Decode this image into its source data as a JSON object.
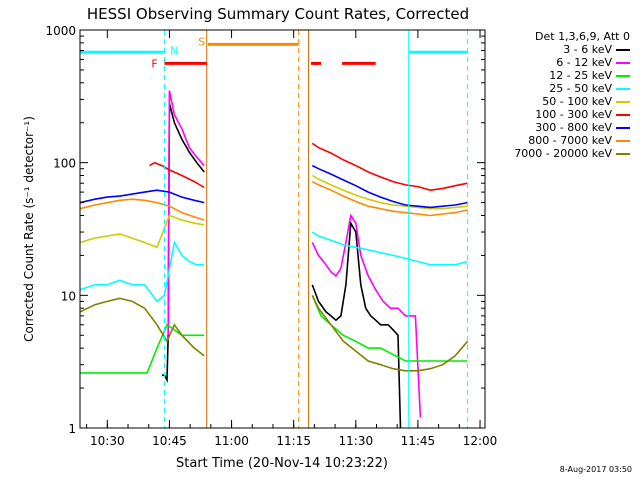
{
  "chart_data": {
    "type": "line",
    "title": "HESSI Observing Summary Count Rates, Corrected",
    "xlabel": "Start Time (20-Nov-14 10:23:22)",
    "ylabel": "Corrected Count Rate (s⁻¹ detector⁻¹)",
    "y_scale": "log",
    "ylim": [
      1,
      1000
    ],
    "xlim": [
      10.39,
      12.02
    ],
    "x_ticks": [
      {
        "v": 10.5,
        "label": "10:30"
      },
      {
        "v": 10.75,
        "label": "10:45"
      },
      {
        "v": 11.0,
        "label": "11:00"
      },
      {
        "v": 11.25,
        "label": "11:15"
      },
      {
        "v": 11.5,
        "label": "11:30"
      },
      {
        "v": 11.75,
        "label": "11:45"
      },
      {
        "v": 12.0,
        "label": "12:00"
      }
    ],
    "y_ticks": [
      {
        "v": 1,
        "label": "1"
      },
      {
        "v": 10,
        "label": "10"
      },
      {
        "v": 100,
        "label": "100"
      },
      {
        "v": 1000,
        "label": "1000"
      }
    ],
    "series": [
      {
        "name": "3 - 6 keV",
        "color": "#000000",
        "points": [
          [
            10.72,
            2.5
          ],
          [
            10.73,
            2.5
          ],
          [
            10.74,
            2.3
          ],
          [
            10.745,
            5
          ],
          [
            10.75,
            280
          ],
          [
            10.77,
            200
          ],
          [
            10.8,
            150
          ],
          [
            10.83,
            120
          ],
          [
            10.86,
            100
          ],
          [
            10.89,
            85
          ],
          [
            11.325,
            12
          ],
          [
            11.35,
            9
          ],
          [
            11.38,
            7.5
          ],
          [
            11.4,
            7
          ],
          [
            11.42,
            6.5
          ],
          [
            11.44,
            7
          ],
          [
            11.46,
            12
          ],
          [
            11.48,
            35
          ],
          [
            11.5,
            30
          ],
          [
            11.52,
            12
          ],
          [
            11.54,
            8
          ],
          [
            11.56,
            7
          ],
          [
            11.58,
            6.5
          ],
          [
            11.6,
            6
          ],
          [
            11.63,
            6
          ],
          [
            11.65,
            5.5
          ],
          [
            11.67,
            5
          ],
          [
            11.68,
            1
          ]
        ]
      },
      {
        "name": "6 - 12 keV",
        "color": "#ff00ff",
        "points": [
          [
            10.745,
            5
          ],
          [
            10.75,
            350
          ],
          [
            10.77,
            230
          ],
          [
            10.8,
            180
          ],
          [
            10.83,
            130
          ],
          [
            10.86,
            110
          ],
          [
            10.89,
            95
          ],
          [
            11.325,
            25
          ],
          [
            11.35,
            20
          ],
          [
            11.38,
            17
          ],
          [
            11.4,
            15
          ],
          [
            11.42,
            14
          ],
          [
            11.44,
            16
          ],
          [
            11.46,
            25
          ],
          [
            11.48,
            40
          ],
          [
            11.5,
            35
          ],
          [
            11.52,
            20
          ],
          [
            11.55,
            14
          ],
          [
            11.58,
            11
          ],
          [
            11.61,
            9
          ],
          [
            11.64,
            8
          ],
          [
            11.67,
            8
          ],
          [
            11.7,
            7
          ],
          [
            11.74,
            7
          ],
          [
            11.76,
            1.2
          ]
        ]
      },
      {
        "name": "12 - 25 keV",
        "color": "#00ee00",
        "points": [
          [
            10.39,
            2.6
          ],
          [
            10.45,
            2.6
          ],
          [
            10.5,
            2.6
          ],
          [
            10.55,
            2.6
          ],
          [
            10.6,
            2.6
          ],
          [
            10.66,
            2.6
          ],
          [
            10.7,
            4
          ],
          [
            10.74,
            6
          ],
          [
            10.77,
            5.5
          ],
          [
            10.8,
            5
          ],
          [
            10.85,
            5
          ],
          [
            10.89,
            5
          ],
          [
            11.325,
            10
          ],
          [
            11.36,
            7
          ],
          [
            11.4,
            6
          ],
          [
            11.45,
            5
          ],
          [
            11.5,
            4.5
          ],
          [
            11.55,
            4
          ],
          [
            11.6,
            4
          ],
          [
            11.66,
            3.5
          ],
          [
            11.7,
            3.2
          ],
          [
            11.75,
            3.2
          ],
          [
            11.8,
            3.2
          ],
          [
            11.85,
            3.2
          ],
          [
            11.9,
            3.2
          ],
          [
            11.95,
            3.2
          ]
        ]
      },
      {
        "name": "25 - 50 keV",
        "color": "#00ffff",
        "points": [
          [
            10.39,
            11
          ],
          [
            10.45,
            12
          ],
          [
            10.5,
            12
          ],
          [
            10.55,
            13
          ],
          [
            10.6,
            12
          ],
          [
            10.65,
            12
          ],
          [
            10.7,
            9
          ],
          [
            10.73,
            10
          ],
          [
            10.77,
            25
          ],
          [
            10.8,
            20
          ],
          [
            10.83,
            18
          ],
          [
            10.86,
            17
          ],
          [
            10.89,
            17
          ],
          [
            11.325,
            30
          ],
          [
            11.35,
            28
          ],
          [
            11.4,
            26
          ],
          [
            11.45,
            24
          ],
          [
            11.5,
            23
          ],
          [
            11.55,
            22
          ],
          [
            11.6,
            21
          ],
          [
            11.65,
            20
          ],
          [
            11.7,
            19
          ],
          [
            11.75,
            18
          ],
          [
            11.8,
            17
          ],
          [
            11.85,
            17
          ],
          [
            11.9,
            17
          ],
          [
            11.95,
            18
          ]
        ]
      },
      {
        "name": "50 - 100 keV",
        "color": "#cccc00",
        "points": [
          [
            10.39,
            25
          ],
          [
            10.45,
            27
          ],
          [
            10.5,
            28
          ],
          [
            10.55,
            29
          ],
          [
            10.6,
            27
          ],
          [
            10.65,
            25
          ],
          [
            10.7,
            23
          ],
          [
            10.75,
            40
          ],
          [
            10.8,
            37
          ],
          [
            10.85,
            35
          ],
          [
            10.89,
            34
          ],
          [
            11.325,
            80
          ],
          [
            11.35,
            75
          ],
          [
            11.4,
            68
          ],
          [
            11.45,
            62
          ],
          [
            11.5,
            57
          ],
          [
            11.55,
            53
          ],
          [
            11.6,
            50
          ],
          [
            11.65,
            48
          ],
          [
            11.7,
            47
          ],
          [
            11.75,
            46
          ],
          [
            11.8,
            45
          ],
          [
            11.85,
            45
          ],
          [
            11.9,
            46
          ],
          [
            11.95,
            47
          ]
        ]
      },
      {
        "name": "100 - 300 keV",
        "color": "#ff0000",
        "points": [
          [
            10.67,
            95
          ],
          [
            10.69,
            100
          ],
          [
            10.72,
            95
          ],
          [
            10.75,
            88
          ],
          [
            10.8,
            80
          ],
          [
            10.85,
            72
          ],
          [
            10.89,
            65
          ],
          [
            11.325,
            140
          ],
          [
            11.35,
            130
          ],
          [
            11.4,
            118
          ],
          [
            11.45,
            105
          ],
          [
            11.5,
            95
          ],
          [
            11.55,
            85
          ],
          [
            11.6,
            78
          ],
          [
            11.65,
            72
          ],
          [
            11.7,
            68
          ],
          [
            11.75,
            66
          ],
          [
            11.8,
            62
          ],
          [
            11.85,
            64
          ],
          [
            11.9,
            67
          ],
          [
            11.95,
            70
          ]
        ]
      },
      {
        "name": "300 - 800 keV",
        "color": "#0000ff",
        "points": [
          [
            10.39,
            50
          ],
          [
            10.45,
            53
          ],
          [
            10.5,
            55
          ],
          [
            10.55,
            56
          ],
          [
            10.6,
            58
          ],
          [
            10.65,
            60
          ],
          [
            10.7,
            62
          ],
          [
            10.75,
            60
          ],
          [
            10.8,
            55
          ],
          [
            10.85,
            52
          ],
          [
            10.89,
            50
          ],
          [
            11.325,
            95
          ],
          [
            11.35,
            90
          ],
          [
            11.4,
            82
          ],
          [
            11.45,
            74
          ],
          [
            11.5,
            67
          ],
          [
            11.55,
            60
          ],
          [
            11.6,
            55
          ],
          [
            11.65,
            51
          ],
          [
            11.7,
            48
          ],
          [
            11.75,
            47
          ],
          [
            11.8,
            46
          ],
          [
            11.85,
            47
          ],
          [
            11.9,
            48
          ],
          [
            11.95,
            50
          ]
        ]
      },
      {
        "name": "800 - 7000 keV",
        "color": "#ff8800",
        "points": [
          [
            10.39,
            45
          ],
          [
            10.45,
            48
          ],
          [
            10.5,
            50
          ],
          [
            10.55,
            52
          ],
          [
            10.6,
            53
          ],
          [
            10.65,
            52
          ],
          [
            10.7,
            50
          ],
          [
            10.75,
            47
          ],
          [
            10.8,
            42
          ],
          [
            10.85,
            39
          ],
          [
            10.89,
            37
          ],
          [
            11.325,
            72
          ],
          [
            11.35,
            68
          ],
          [
            11.4,
            62
          ],
          [
            11.45,
            56
          ],
          [
            11.5,
            51
          ],
          [
            11.55,
            47
          ],
          [
            11.6,
            45
          ],
          [
            11.65,
            43
          ],
          [
            11.7,
            42
          ],
          [
            11.75,
            41
          ],
          [
            11.8,
            40
          ],
          [
            11.85,
            41
          ],
          [
            11.9,
            42
          ],
          [
            11.95,
            44
          ]
        ]
      },
      {
        "name": "7000 - 20000 keV",
        "color": "#808000",
        "points": [
          [
            10.39,
            7.5
          ],
          [
            10.45,
            8.5
          ],
          [
            10.5,
            9
          ],
          [
            10.55,
            9.5
          ],
          [
            10.6,
            9
          ],
          [
            10.65,
            8
          ],
          [
            10.7,
            6
          ],
          [
            10.74,
            4.5
          ],
          [
            10.77,
            6
          ],
          [
            10.8,
            5
          ],
          [
            10.85,
            4
          ],
          [
            10.89,
            3.5
          ],
          [
            11.325,
            10
          ],
          [
            11.35,
            8
          ],
          [
            11.4,
            6
          ],
          [
            11.45,
            4.5
          ],
          [
            11.5,
            3.8
          ],
          [
            11.55,
            3.2
          ],
          [
            11.6,
            3
          ],
          [
            11.65,
            2.8
          ],
          [
            11.7,
            2.7
          ],
          [
            11.75,
            2.7
          ],
          [
            11.8,
            2.8
          ],
          [
            11.85,
            3
          ],
          [
            11.9,
            3.5
          ],
          [
            11.95,
            4.5
          ]
        ]
      }
    ],
    "vlines": [
      {
        "x": 10.39,
        "color": "#00ffff",
        "dash": false
      },
      {
        "x": 10.73,
        "color": "#00ffff",
        "dash": true
      },
      {
        "x": 10.9,
        "color": "#cc6600",
        "dash": false
      },
      {
        "x": 11.27,
        "color": "#ff8800",
        "dash": true
      },
      {
        "x": 11.31,
        "color": "#cc6600",
        "dash": false
      },
      {
        "x": 11.713,
        "color": "#00ffff",
        "dash": false
      },
      {
        "x": 11.95,
        "color": "#00ffff",
        "dash": true
      }
    ],
    "bars": [
      {
        "x0": 10.39,
        "x1": 10.73,
        "y": 680,
        "color": "#00ffff"
      },
      {
        "x0": 10.73,
        "x1": 10.9,
        "y": 560,
        "color": "#ff0000"
      },
      {
        "x0": 10.905,
        "x1": 11.27,
        "y": 780,
        "color": "#ff8800"
      },
      {
        "x0": 11.32,
        "x1": 11.36,
        "y": 560,
        "color": "#ff0000"
      },
      {
        "x0": 11.445,
        "x1": 11.58,
        "y": 560,
        "color": "#ff0000"
      },
      {
        "x0": 11.713,
        "x1": 11.95,
        "y": 680,
        "color": "#00ffff"
      }
    ],
    "markers": [
      {
        "label": "F",
        "x": 10.69,
        "y": 560,
        "color": "#ff0000"
      },
      {
        "label": "N",
        "x": 10.77,
        "y": 700,
        "color": "#00ffff"
      },
      {
        "label": "S",
        "x": 10.88,
        "y": 820,
        "color": "#ff8800"
      }
    ],
    "legend": {
      "header": "Det 1,3,6,9, Att 0",
      "position": "right"
    },
    "timestamp": "8-Aug-2017 03:50"
  }
}
